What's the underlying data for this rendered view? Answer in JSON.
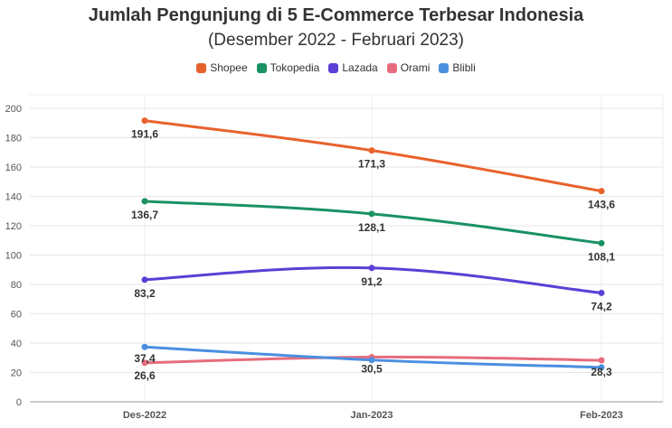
{
  "chart_data": {
    "type": "line",
    "title": "Jumlah Pengunjung di 5 E-Commerce Terbesar Indonesia",
    "subtitle": "(Desember 2022 - Februari 2023)",
    "categories": [
      "Des-2022",
      "Jan-2023",
      "Feb-2023"
    ],
    "ylim": [
      0,
      200
    ],
    "yticks": [
      "0",
      "20",
      "40",
      "60",
      "80",
      "100",
      "120",
      "140",
      "160",
      "180",
      "200"
    ],
    "grid": true,
    "legend_position": "top-center",
    "series": [
      {
        "name": "Shopee",
        "color": "#e8622c",
        "values": [
          191.6,
          171.3,
          143.6
        ],
        "labels": [
          "191,6",
          "171,3",
          "143,6"
        ]
      },
      {
        "name": "Tokopedia",
        "color": "#1a9163",
        "values": [
          136.7,
          128.1,
          108.1
        ],
        "labels": [
          "136,7",
          "128,1",
          "108,1"
        ]
      },
      {
        "name": "Lazada",
        "color": "#5b3fd6",
        "values": [
          83.2,
          91.2,
          74.2
        ],
        "labels": [
          "83,2",
          "91,2",
          "74,2"
        ]
      },
      {
        "name": "Orami",
        "color": "#e66c7d",
        "values": [
          26.6,
          30.5,
          28.3
        ],
        "labels": [
          "26,6",
          "30,5",
          "28,3"
        ]
      },
      {
        "name": "Blibli",
        "color": "#4a8fe0",
        "values": [
          37.4,
          28.5,
          23.5
        ],
        "labels": [
          "37,4",
          "",
          ""
        ]
      }
    ]
  }
}
